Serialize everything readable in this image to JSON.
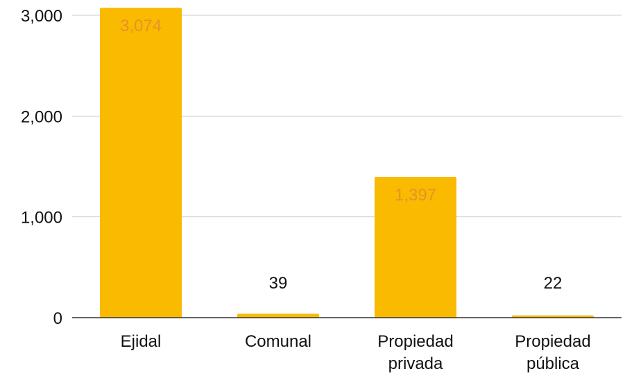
{
  "chart_data": {
    "type": "bar",
    "title": "",
    "xlabel": "",
    "ylabel": "",
    "categories": [
      [
        "Ejidal"
      ],
      [
        "Comunal"
      ],
      [
        "Propiedad",
        "privada"
      ],
      [
        "Propiedad",
        "pública"
      ]
    ],
    "values": [
      3074,
      39,
      1397,
      22
    ],
    "data_labels": [
      "3,074",
      "39",
      "1,397",
      "22"
    ],
    "ylim": [
      0,
      3000
    ],
    "yticks": [
      0,
      1000,
      2000,
      3000
    ],
    "ytick_labels": [
      "0",
      "1,000",
      "2,000",
      "3,000"
    ],
    "grid": true,
    "legend": "none",
    "colors": {
      "bar": "#F9BA00",
      "label_inside": "#E8922A",
      "label_outside": "#111111",
      "grid": "#CCCCCC",
      "axis": "#333333"
    }
  }
}
